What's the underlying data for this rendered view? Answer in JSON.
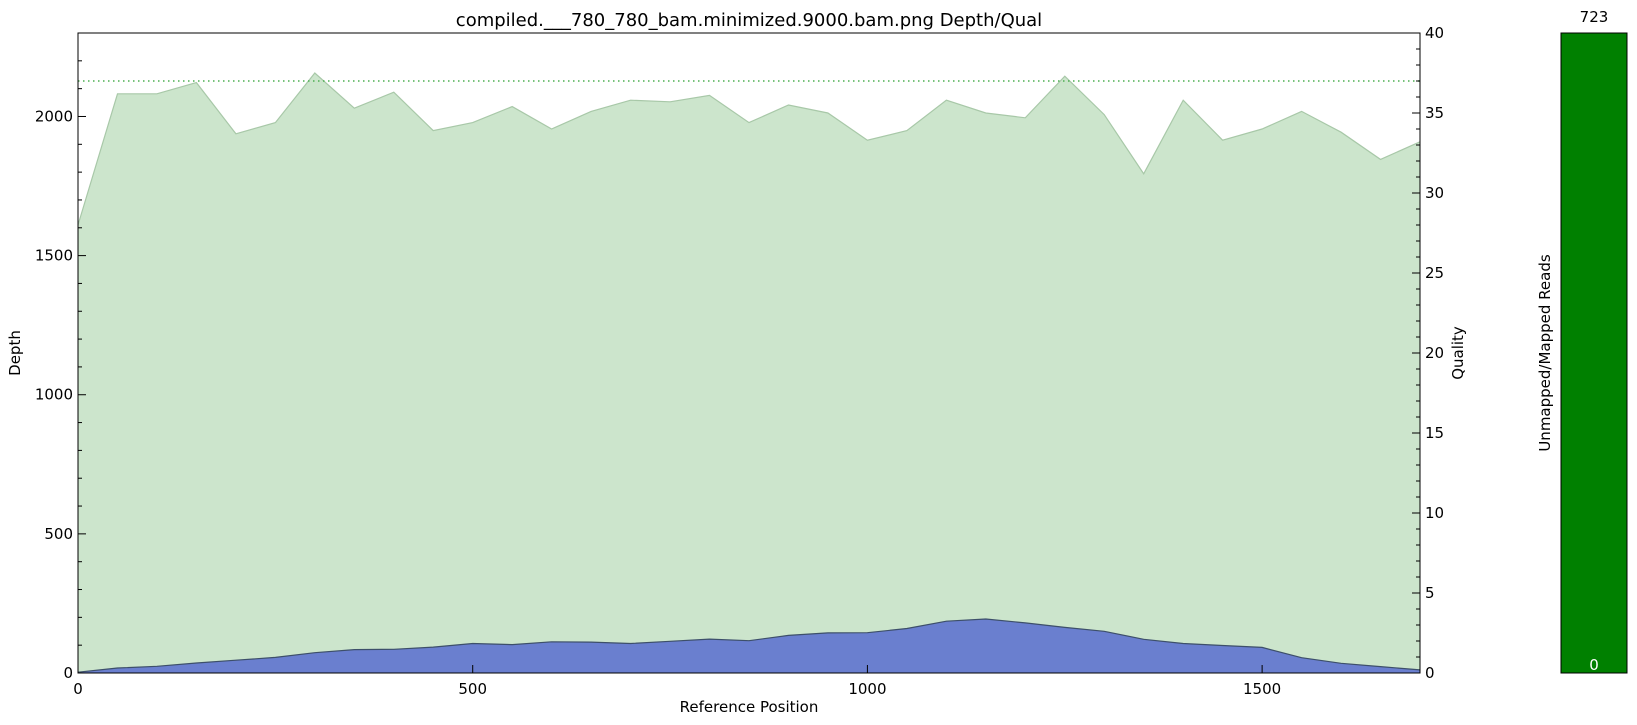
{
  "chart_data": [
    {
      "type": "area",
      "title": "compiled.___780_780_bam.minimized.9000.bam.png Depth/Qual",
      "xlabel": "Reference Position",
      "ylabel": "Depth",
      "y2label": "Quality",
      "xlim": [
        0,
        1700
      ],
      "ylim": [
        0,
        2300
      ],
      "y2lim": [
        0,
        40
      ],
      "xticks": [
        0,
        500,
        1000,
        1500
      ],
      "yticks": [
        0,
        500,
        1000,
        1500,
        2000
      ],
      "y2ticks": [
        0,
        5,
        10,
        15,
        20,
        25,
        30,
        35,
        40
      ],
      "x": [
        0,
        50,
        100,
        150,
        200,
        250,
        300,
        350,
        400,
        450,
        500,
        550,
        600,
        650,
        700,
        750,
        800,
        850,
        900,
        950,
        1000,
        1050,
        1100,
        1150,
        1200,
        1250,
        1300,
        1350,
        1400,
        1450,
        1500,
        1550,
        1600,
        1650,
        1700
      ],
      "series": [
        {
          "axis": "right",
          "color": "#cce5cc",
          "line_color": "#a8c8a8",
          "values": [
            28.0,
            36.2,
            36.2,
            36.9,
            33.7,
            34.4,
            37.5,
            35.3,
            36.3,
            33.9,
            34.4,
            35.4,
            34.0,
            35.1,
            35.8,
            35.7,
            36.1,
            34.4,
            35.5,
            35.0,
            33.3,
            33.9,
            35.8,
            35.0,
            34.7,
            37.3,
            34.9,
            31.2,
            35.8,
            33.3,
            34.0,
            35.1,
            33.8,
            32.1,
            33.2
          ]
        },
        {
          "axis": "left",
          "color": "#6a7fcf",
          "line_color": "#3d4f6a",
          "values": [
            3,
            18,
            24,
            36,
            46,
            56,
            73,
            84,
            85,
            93,
            106,
            102,
            112,
            111,
            106,
            114,
            122,
            116,
            135,
            144,
            145,
            160,
            186,
            194,
            180,
            164,
            150,
            121,
            106,
            99,
            92,
            55,
            35,
            23,
            11
          ]
        }
      ],
      "reference_line": {
        "axis": "right",
        "value": 37,
        "style": "dotted",
        "color": "#4caf50"
      }
    },
    {
      "type": "bar",
      "ylabel": "Unmapped/Mapped Reads",
      "top_label": "723",
      "bottom_label": "0",
      "mapped": 723,
      "unmapped": 0,
      "color": "#008000"
    }
  ]
}
